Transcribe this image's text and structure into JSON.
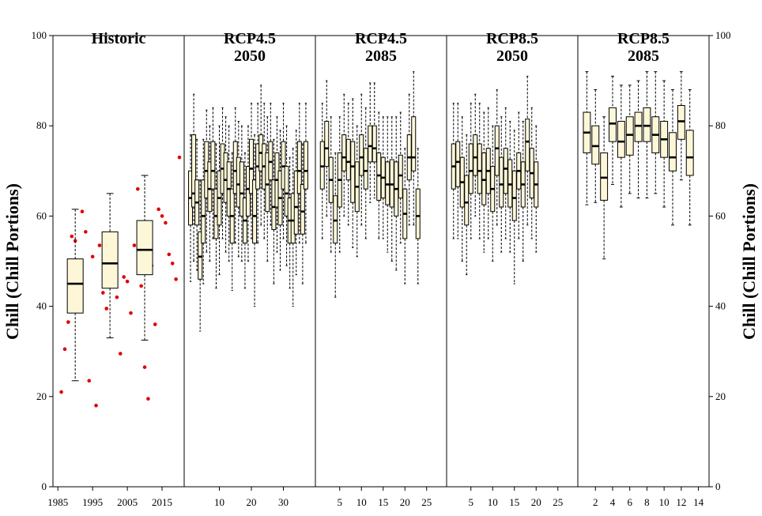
{
  "chart_data": {
    "type": "box",
    "ylabel": "Chill (Chill Portions)",
    "ylim": [
      0,
      100
    ],
    "y_ticks": [
      0,
      20,
      40,
      60,
      80,
      100
    ],
    "colors": {
      "box_fill": "#fdf7d8",
      "box_stroke": "#000000",
      "historic_points": "#e00000"
    },
    "panels": [
      {
        "name": "historic",
        "title_lines": [
          "Historic"
        ],
        "xlim": [
          1984.5,
          2020
        ],
        "x_ticks": [
          1985,
          1995,
          2005,
          2015
        ],
        "points": [
          {
            "x": 1986,
            "y": 21
          },
          {
            "x": 1987,
            "y": 30.5
          },
          {
            "x": 1988,
            "y": 36.5
          },
          {
            "x": 1989,
            "y": 55.5
          },
          {
            "x": 1990,
            "y": 54.5
          },
          {
            "x": 1991,
            "y": 46
          },
          {
            "x": 1992,
            "y": 61
          },
          {
            "x": 1993,
            "y": 56.5
          },
          {
            "x": 1994,
            "y": 23.5
          },
          {
            "x": 1995,
            "y": 51
          },
          {
            "x": 1996,
            "y": 18
          },
          {
            "x": 1997,
            "y": 53.5
          },
          {
            "x": 1998,
            "y": 43
          },
          {
            "x": 1999,
            "y": 39.5
          },
          {
            "x": 2000,
            "y": 45
          },
          {
            "x": 2001,
            "y": 51.5
          },
          {
            "x": 2002,
            "y": 42
          },
          {
            "x": 2003,
            "y": 29.5
          },
          {
            "x": 2004,
            "y": 46.5
          },
          {
            "x": 2005,
            "y": 45.5
          },
          {
            "x": 2006,
            "y": 38.5
          },
          {
            "x": 2007,
            "y": 53.5
          },
          {
            "x": 2008,
            "y": 66
          },
          {
            "x": 2009,
            "y": 44.5
          },
          {
            "x": 2010,
            "y": 26.5
          },
          {
            "x": 2011,
            "y": 19.5
          },
          {
            "x": 2012,
            "y": 49
          },
          {
            "x": 2013,
            "y": 36
          },
          {
            "x": 2014,
            "y": 61.5
          },
          {
            "x": 2015,
            "y": 60
          },
          {
            "x": 2016,
            "y": 58.5
          },
          {
            "x": 2017,
            "y": 51.5
          },
          {
            "x": 2018,
            "y": 49.5
          },
          {
            "x": 2019,
            "y": 46
          },
          {
            "x": 2020,
            "y": 73
          }
        ],
        "boxes": [
          {
            "x": 1990,
            "min": 23.5,
            "q1": 38.5,
            "median": 45,
            "q3": 50.5,
            "max": 61.5
          },
          {
            "x": 2000,
            "min": 33,
            "q1": 44,
            "median": 49.5,
            "q3": 56.5,
            "max": 65
          },
          {
            "x": 2010,
            "min": 32.5,
            "q1": 47,
            "median": 52.5,
            "q3": 59,
            "max": 69
          }
        ]
      },
      {
        "name": "rcp45-2050",
        "title_lines": [
          "RCP4.5",
          "2050"
        ],
        "xlim": [
          0.5,
          38.5
        ],
        "x_ticks": [
          10,
          20,
          30
        ],
        "boxes": [
          {
            "x": 1,
            "min": 45.5,
            "q1": 58,
            "median": 64,
            "q3": 70,
            "max": 78
          },
          {
            "x": 2,
            "min": 50,
            "q1": 62,
            "median": 65,
            "q3": 78,
            "max": 87
          },
          {
            "x": 3,
            "min": 48,
            "q1": 58,
            "median": 63,
            "q3": 68,
            "max": 77
          },
          {
            "x": 4,
            "min": 34.5,
            "q1": 46,
            "median": 51,
            "q3": 56.5,
            "max": 68
          },
          {
            "x": 5,
            "min": 45,
            "q1": 54,
            "median": 60,
            "q3": 68,
            "max": 77
          },
          {
            "x": 6,
            "min": 52,
            "q1": 64,
            "median": 70,
            "q3": 76.5,
            "max": 83.5
          },
          {
            "x": 7,
            "min": 50,
            "q1": 61,
            "median": 66,
            "q3": 72,
            "max": 80
          },
          {
            "x": 8,
            "min": 55,
            "q1": 66,
            "median": 70,
            "q3": 76.5,
            "max": 84
          },
          {
            "x": 9,
            "min": 44,
            "q1": 55,
            "median": 60,
            "q3": 66,
            "max": 76
          },
          {
            "x": 10,
            "min": 47,
            "q1": 58,
            "median": 64,
            "q3": 70,
            "max": 80
          },
          {
            "x": 11,
            "min": 55,
            "q1": 65,
            "median": 70.5,
            "q3": 76,
            "max": 84
          },
          {
            "x": 12,
            "min": 52,
            "q1": 63,
            "median": 68,
            "q3": 74,
            "max": 82
          },
          {
            "x": 13,
            "min": 50,
            "q1": 60,
            "median": 66,
            "q3": 72,
            "max": 80
          },
          {
            "x": 14,
            "min": 43.5,
            "q1": 54,
            "median": 60,
            "q3": 66,
            "max": 74
          },
          {
            "x": 15,
            "min": 54,
            "q1": 65,
            "median": 70,
            "q3": 76.5,
            "max": 84
          },
          {
            "x": 16,
            "min": 51,
            "q1": 62,
            "median": 67,
            "q3": 73,
            "max": 81
          },
          {
            "x": 17,
            "min": 50,
            "q1": 60,
            "median": 65,
            "q3": 72,
            "max": 80
          },
          {
            "x": 18,
            "min": 44,
            "q1": 54,
            "median": 59,
            "q3": 64,
            "max": 74
          },
          {
            "x": 19,
            "min": 50,
            "q1": 60,
            "median": 66,
            "q3": 71,
            "max": 80
          },
          {
            "x": 20,
            "min": 55,
            "q1": 65,
            "median": 70.5,
            "q3": 77,
            "max": 85
          },
          {
            "x": 21,
            "min": 40,
            "q1": 54,
            "median": 60,
            "q3": 68,
            "max": 78
          },
          {
            "x": 22,
            "min": 54,
            "q1": 66,
            "median": 71,
            "q3": 76,
            "max": 85
          },
          {
            "x": 23,
            "min": 58,
            "q1": 70,
            "median": 74,
            "q3": 78,
            "max": 89
          },
          {
            "x": 24,
            "min": 55,
            "q1": 66,
            "median": 71,
            "q3": 76,
            "max": 85
          },
          {
            "x": 25,
            "min": 50,
            "q1": 61,
            "median": 67,
            "q3": 74,
            "max": 82
          },
          {
            "x": 26,
            "min": 58,
            "q1": 68,
            "median": 72,
            "q3": 76.5,
            "max": 85
          },
          {
            "x": 27,
            "min": 45,
            "q1": 57,
            "median": 62,
            "q3": 68,
            "max": 77
          },
          {
            "x": 28,
            "min": 52,
            "q1": 62,
            "median": 68,
            "q3": 74,
            "max": 82
          },
          {
            "x": 29,
            "min": 48,
            "q1": 58,
            "median": 64,
            "q3": 70,
            "max": 79
          },
          {
            "x": 30,
            "min": 55,
            "q1": 66,
            "median": 71,
            "q3": 76.5,
            "max": 85
          },
          {
            "x": 31,
            "min": 49,
            "q1": 60,
            "median": 65,
            "q3": 71,
            "max": 80
          },
          {
            "x": 32,
            "min": 44,
            "q1": 54,
            "median": 59,
            "q3": 64,
            "max": 73
          },
          {
            "x": 33,
            "min": 40,
            "q1": 54,
            "median": 59,
            "q3": 65,
            "max": 75
          },
          {
            "x": 34,
            "min": 47,
            "q1": 56,
            "median": 62,
            "q3": 70,
            "max": 79
          },
          {
            "x": 35,
            "min": 54,
            "q1": 65,
            "median": 70,
            "q3": 76.5,
            "max": 85
          },
          {
            "x": 36,
            "min": 45,
            "q1": 56,
            "median": 61,
            "q3": 67,
            "max": 76
          },
          {
            "x": 37,
            "min": 54,
            "q1": 66,
            "median": 70,
            "q3": 76.5,
            "max": 85
          }
        ]
      },
      {
        "name": "rcp45-2085",
        "title_lines": [
          "RCP4.5",
          "2085"
        ],
        "xlim": [
          0.5,
          28.5
        ],
        "x_ticks": [
          5,
          10,
          15,
          20,
          25
        ],
        "boxes": [
          {
            "x": 1,
            "min": 55,
            "q1": 66,
            "median": 71,
            "q3": 76.5,
            "max": 85
          },
          {
            "x": 2,
            "min": 60,
            "q1": 71,
            "median": 75,
            "q3": 81,
            "max": 90
          },
          {
            "x": 3,
            "min": 52,
            "q1": 63,
            "median": 68,
            "q3": 73,
            "max": 82
          },
          {
            "x": 4,
            "min": 42,
            "q1": 54,
            "median": 59,
            "q3": 64.5,
            "max": 74
          },
          {
            "x": 5,
            "min": 52,
            "q1": 62,
            "median": 68,
            "q3": 74,
            "max": 82
          },
          {
            "x": 6,
            "min": 60,
            "q1": 70,
            "median": 73,
            "q3": 78,
            "max": 87
          },
          {
            "x": 7,
            "min": 58,
            "q1": 68,
            "median": 72,
            "q3": 77,
            "max": 85
          },
          {
            "x": 8,
            "min": 53,
            "q1": 63,
            "median": 71,
            "q3": 76.5,
            "max": 86
          },
          {
            "x": 9,
            "min": 51,
            "q1": 61,
            "median": 66.5,
            "q3": 72,
            "max": 80
          },
          {
            "x": 10,
            "min": 58,
            "q1": 69,
            "median": 73,
            "q3": 78,
            "max": 87
          },
          {
            "x": 11,
            "min": 55,
            "q1": 66,
            "median": 70,
            "q3": 75,
            "max": 84
          },
          {
            "x": 12,
            "min": 63,
            "q1": 72,
            "median": 75.5,
            "q3": 80,
            "max": 89.5
          },
          {
            "x": 13,
            "min": 64,
            "q1": 72,
            "median": 75,
            "q3": 80,
            "max": 89.5
          },
          {
            "x": 14,
            "min": 55,
            "q1": 63.5,
            "median": 69,
            "q3": 74,
            "max": 83
          },
          {
            "x": 15,
            "min": 55,
            "q1": 64,
            "median": 68.5,
            "q3": 73,
            "max": 82
          },
          {
            "x": 16,
            "min": 52,
            "q1": 62.5,
            "median": 67,
            "q3": 72,
            "max": 82
          },
          {
            "x": 17,
            "min": 50,
            "q1": 62,
            "median": 67,
            "q3": 72.5,
            "max": 82
          },
          {
            "x": 18,
            "min": 48,
            "q1": 60,
            "median": 66,
            "q3": 72,
            "max": 82
          },
          {
            "x": 19,
            "min": 54,
            "q1": 64,
            "median": 69,
            "q3": 73.5,
            "max": 83
          },
          {
            "x": 20,
            "min": 45,
            "q1": 55,
            "median": 60.5,
            "q3": 66,
            "max": 75
          },
          {
            "x": 21,
            "min": 58,
            "q1": 68,
            "median": 73,
            "q3": 78,
            "max": 87
          },
          {
            "x": 22,
            "min": 58,
            "q1": 70,
            "median": 73,
            "q3": 82,
            "max": 92
          },
          {
            "x": 23,
            "min": 45,
            "q1": 55,
            "median": 60,
            "q3": 66,
            "max": 75
          }
        ]
      },
      {
        "name": "rcp85-2050",
        "title_lines": [
          "RCP8.5",
          "2050"
        ],
        "xlim": [
          0.5,
          28.5
        ],
        "x_ticks": [
          5,
          10,
          15,
          20,
          25
        ],
        "boxes": [
          {
            "x": 1,
            "min": 55,
            "q1": 66,
            "median": 71,
            "q3": 76,
            "max": 85
          },
          {
            "x": 2,
            "min": 55,
            "q1": 66.5,
            "median": 72,
            "q3": 76.5,
            "max": 85
          },
          {
            "x": 3,
            "min": 50,
            "q1": 62,
            "median": 67.5,
            "q3": 73,
            "max": 82
          },
          {
            "x": 4,
            "min": 47,
            "q1": 58,
            "median": 63,
            "q3": 69,
            "max": 78
          },
          {
            "x": 5,
            "min": 55,
            "q1": 65,
            "median": 70,
            "q3": 76,
            "max": 85
          },
          {
            "x": 6,
            "min": 60,
            "q1": 69,
            "median": 73,
            "q3": 78,
            "max": 87
          },
          {
            "x": 7,
            "min": 55,
            "q1": 65,
            "median": 70,
            "q3": 76,
            "max": 85
          },
          {
            "x": 8,
            "min": 52,
            "q1": 62.5,
            "median": 68,
            "q3": 74,
            "max": 83
          },
          {
            "x": 9,
            "min": 55,
            "q1": 65,
            "median": 70,
            "q3": 75,
            "max": 84
          },
          {
            "x": 10,
            "min": 50,
            "q1": 61,
            "median": 66,
            "q3": 71,
            "max": 80
          },
          {
            "x": 11,
            "min": 58,
            "q1": 69,
            "median": 75,
            "q3": 80,
            "max": 88
          },
          {
            "x": 12,
            "min": 52,
            "q1": 62,
            "median": 67,
            "q3": 73,
            "max": 82
          },
          {
            "x": 13,
            "min": 55,
            "q1": 65,
            "median": 70.5,
            "q3": 75,
            "max": 84
          },
          {
            "x": 14,
            "min": 52,
            "q1": 62,
            "median": 67,
            "q3": 72.5,
            "max": 81
          },
          {
            "x": 15,
            "min": 45,
            "q1": 59,
            "median": 64,
            "q3": 70,
            "max": 79
          },
          {
            "x": 16,
            "min": 55,
            "q1": 66,
            "median": 70,
            "q3": 74,
            "max": 83
          },
          {
            "x": 17,
            "min": 50,
            "q1": 62,
            "median": 67,
            "q3": 72,
            "max": 81
          },
          {
            "x": 18,
            "min": 58,
            "q1": 70,
            "median": 76.5,
            "q3": 81.5,
            "max": 91
          },
          {
            "x": 19,
            "min": 55,
            "q1": 64,
            "median": 69.5,
            "q3": 75,
            "max": 84
          },
          {
            "x": 20,
            "min": 52,
            "q1": 62,
            "median": 67,
            "q3": 72,
            "max": 80
          }
        ]
      },
      {
        "name": "rcp85-2085",
        "title_lines": [
          "RCP8.5",
          "2085"
        ],
        "xlim": [
          0.5,
          14.5
        ],
        "x_ticks": [
          2,
          4,
          6,
          8,
          10,
          12,
          14
        ],
        "boxes": [
          {
            "x": 1,
            "min": 62.5,
            "q1": 74,
            "median": 78.5,
            "q3": 83,
            "max": 92
          },
          {
            "x": 2,
            "min": 63,
            "q1": 71.5,
            "median": 75.5,
            "q3": 80,
            "max": 88
          },
          {
            "x": 3,
            "min": 50.5,
            "q1": 63.5,
            "median": 68.5,
            "q3": 74,
            "max": 82
          },
          {
            "x": 4,
            "min": 67,
            "q1": 76.5,
            "median": 80.5,
            "q3": 84,
            "max": 91
          },
          {
            "x": 5,
            "min": 62,
            "q1": 73,
            "median": 76.5,
            "q3": 81,
            "max": 89
          },
          {
            "x": 6,
            "min": 65,
            "q1": 73.5,
            "median": 78,
            "q3": 82,
            "max": 89
          },
          {
            "x": 7,
            "min": 64,
            "q1": 76.5,
            "median": 80,
            "q3": 83,
            "max": 90
          },
          {
            "x": 8,
            "min": 64,
            "q1": 76.5,
            "median": 80,
            "q3": 84,
            "max": 92
          },
          {
            "x": 9,
            "min": 65,
            "q1": 74,
            "median": 78,
            "q3": 82,
            "max": 92
          },
          {
            "x": 10,
            "min": 62,
            "q1": 73,
            "median": 77,
            "q3": 81,
            "max": 90
          },
          {
            "x": 11,
            "min": 58,
            "q1": 70,
            "median": 73,
            "q3": 78.5,
            "max": 88
          },
          {
            "x": 12,
            "min": 68,
            "q1": 77,
            "median": 81,
            "q3": 84.5,
            "max": 92
          },
          {
            "x": 13,
            "min": 58,
            "q1": 69,
            "median": 73,
            "q3": 79,
            "max": 88
          }
        ]
      }
    ]
  }
}
